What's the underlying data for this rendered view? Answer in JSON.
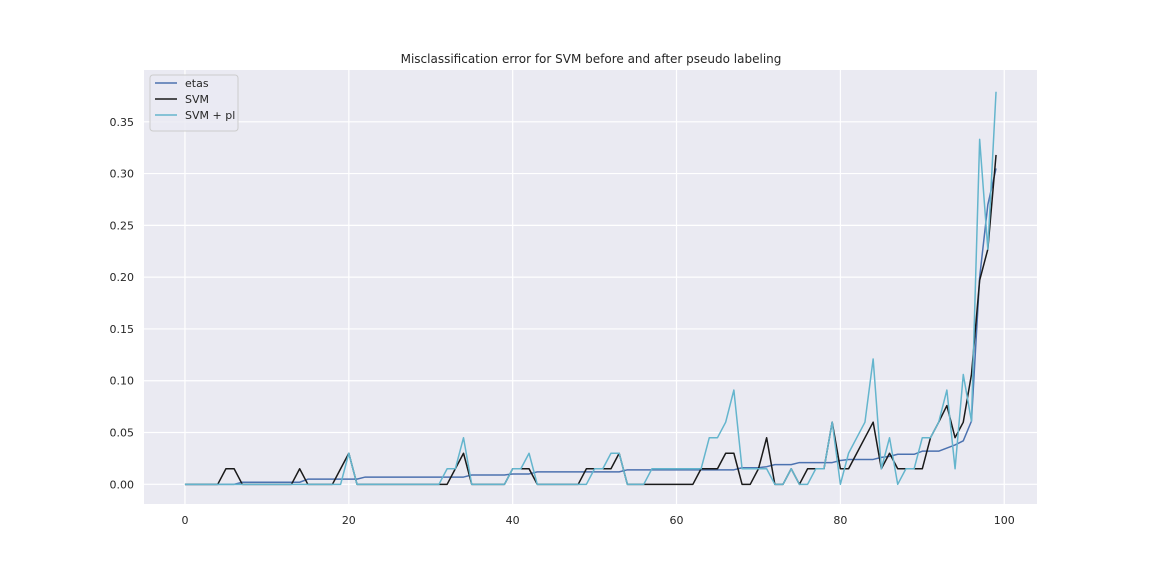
{
  "chart_data": {
    "type": "line",
    "title": "Misclassification error for SVM before and after pseudo labeling",
    "xlabel": "",
    "ylabel": "",
    "xlim": [
      -5,
      104
    ],
    "ylim": [
      -0.019,
      0.4
    ],
    "xticks": [
      0,
      20,
      40,
      60,
      80,
      100
    ],
    "yticks": [
      0.0,
      0.05,
      0.1,
      0.15,
      0.2,
      0.25,
      0.3,
      0.35
    ],
    "ytick_labels": [
      "0.00",
      "0.05",
      "0.10",
      "0.15",
      "0.20",
      "0.25",
      "0.30",
      "0.35"
    ],
    "grid": true,
    "legend_position": "top-left",
    "x": [
      0,
      1,
      2,
      3,
      4,
      5,
      6,
      7,
      8,
      9,
      10,
      11,
      12,
      13,
      14,
      15,
      16,
      17,
      18,
      19,
      20,
      21,
      22,
      23,
      24,
      25,
      26,
      27,
      28,
      29,
      30,
      31,
      32,
      33,
      34,
      35,
      36,
      37,
      38,
      39,
      40,
      41,
      42,
      43,
      44,
      45,
      46,
      47,
      48,
      49,
      50,
      51,
      52,
      53,
      54,
      55,
      56,
      57,
      58,
      59,
      60,
      61,
      62,
      63,
      64,
      65,
      66,
      67,
      68,
      69,
      70,
      71,
      72,
      73,
      74,
      75,
      76,
      77,
      78,
      79,
      80,
      81,
      82,
      83,
      84,
      85,
      86,
      87,
      88,
      89,
      90,
      91,
      92,
      93,
      94,
      95,
      96,
      97,
      98,
      99
    ],
    "series": [
      {
        "name": "etas",
        "color": "#4c72b0",
        "values": [
          0,
          0,
          0,
          0,
          0,
          0,
          0,
          0.002,
          0.002,
          0.002,
          0.002,
          0.002,
          0.002,
          0.002,
          0.002,
          0.005,
          0.005,
          0.005,
          0.005,
          0.005,
          0.005,
          0.005,
          0.007,
          0.007,
          0.007,
          0.007,
          0.007,
          0.007,
          0.007,
          0.007,
          0.007,
          0.007,
          0.007,
          0.007,
          0.007,
          0.009,
          0.009,
          0.009,
          0.009,
          0.009,
          0.01,
          0.01,
          0.01,
          0.012,
          0.012,
          0.012,
          0.012,
          0.012,
          0.012,
          0.012,
          0.012,
          0.012,
          0.012,
          0.012,
          0.014,
          0.014,
          0.014,
          0.014,
          0.014,
          0.014,
          0.014,
          0.014,
          0.014,
          0.014,
          0.014,
          0.014,
          0.014,
          0.014,
          0.016,
          0.016,
          0.016,
          0.017,
          0.019,
          0.019,
          0.019,
          0.021,
          0.021,
          0.021,
          0.021,
          0.021,
          0.023,
          0.024,
          0.024,
          0.024,
          0.024,
          0.026,
          0.027,
          0.029,
          0.029,
          0.029,
          0.032,
          0.032,
          0.032,
          0.035,
          0.038,
          0.042,
          0.061,
          0.2,
          0.27,
          0.305
        ]
      },
      {
        "name": "SVM",
        "color": "#1a1a1a",
        "values": [
          0,
          0,
          0,
          0,
          0,
          0.015,
          0.015,
          0,
          0,
          0,
          0,
          0,
          0,
          0,
          0.015,
          0,
          0,
          0,
          0,
          0.015,
          0.03,
          0,
          0,
          0,
          0,
          0,
          0,
          0,
          0,
          0,
          0,
          0,
          0,
          0.015,
          0.03,
          0,
          0,
          0,
          0,
          0,
          0.015,
          0.015,
          0.015,
          0,
          0,
          0,
          0,
          0,
          0,
          0.015,
          0.015,
          0.015,
          0.015,
          0.03,
          0,
          0,
          0,
          0,
          0,
          0,
          0,
          0,
          0,
          0.015,
          0.015,
          0.015,
          0.03,
          0.03,
          0,
          0,
          0.015,
          0.045,
          0,
          0,
          0.015,
          0,
          0.015,
          0.015,
          0.015,
          0.06,
          0.015,
          0.015,
          0.03,
          0.045,
          0.06,
          0.015,
          0.03,
          0.015,
          0.015,
          0.015,
          0.015,
          0.045,
          0.06,
          0.076,
          0.045,
          0.06,
          0.106,
          0.197,
          0.227,
          0.318
        ]
      },
      {
        "name": "SVM + pl",
        "color": "#64b5cd",
        "values": [
          0,
          0,
          0,
          0,
          0,
          0,
          0,
          0,
          0,
          0,
          0,
          0,
          0,
          0,
          0,
          0,
          0,
          0,
          0,
          0,
          0.03,
          0,
          0,
          0,
          0,
          0,
          0,
          0,
          0,
          0,
          0,
          0,
          0.015,
          0.015,
          0.045,
          0,
          0,
          0,
          0,
          0,
          0.015,
          0.015,
          0.03,
          0,
          0,
          0,
          0,
          0,
          0,
          0,
          0.015,
          0.015,
          0.03,
          0.03,
          0,
          0,
          0,
          0.015,
          0.015,
          0.015,
          0.015,
          0.015,
          0.015,
          0.015,
          0.045,
          0.045,
          0.06,
          0.091,
          0.015,
          0.015,
          0.015,
          0.015,
          0,
          0,
          0.015,
          0,
          0,
          0.015,
          0.015,
          0.06,
          0,
          0.03,
          0.045,
          0.06,
          0.121,
          0.015,
          0.045,
          0,
          0.015,
          0.015,
          0.045,
          0.045,
          0.06,
          0.091,
          0.015,
          0.106,
          0.061,
          0.333,
          0.227,
          0.379
        ]
      }
    ]
  }
}
